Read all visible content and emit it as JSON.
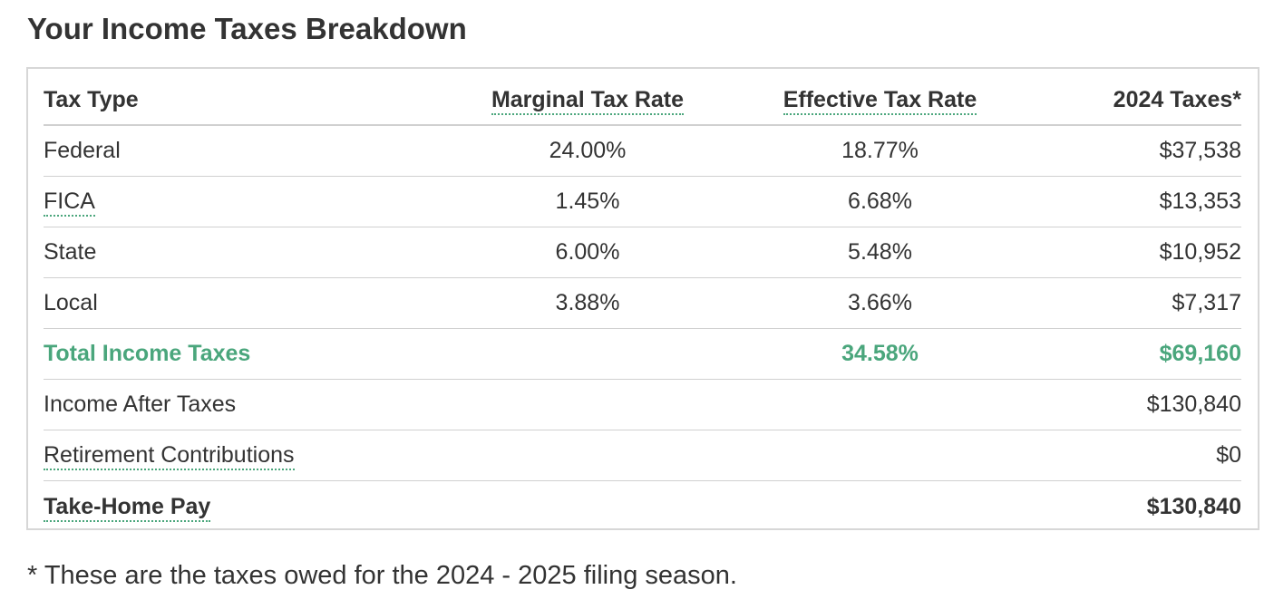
{
  "title": "Your Income Taxes Breakdown",
  "colors": {
    "accent": "#4aa67c",
    "text": "#333333",
    "border": "#d7d7d7"
  },
  "table": {
    "headers": {
      "tax_type": "Tax Type",
      "marginal": "Marginal Tax Rate",
      "effective": "Effective Tax Rate",
      "taxes": "2024 Taxes*"
    },
    "rows": [
      {
        "type": "Federal",
        "marginal": "24.00%",
        "effective": "18.77%",
        "taxes": "$37,538"
      },
      {
        "type": "FICA",
        "marginal": "1.45%",
        "effective": "6.68%",
        "taxes": "$13,353"
      },
      {
        "type": "State",
        "marginal": "6.00%",
        "effective": "5.48%",
        "taxes": "$10,952"
      },
      {
        "type": "Local",
        "marginal": "3.88%",
        "effective": "3.66%",
        "taxes": "$7,317"
      }
    ],
    "total": {
      "label": "Total Income Taxes",
      "effective": "34.58%",
      "taxes": "$69,160"
    },
    "after_taxes": {
      "label": "Income After Taxes",
      "value": "$130,840"
    },
    "retirement": {
      "label": "Retirement Contributions",
      "value": "$0"
    },
    "take_home": {
      "label": "Take-Home Pay",
      "value": "$130,840"
    }
  },
  "footnote": "* These are the taxes owed for the 2024 - 2025 filing season."
}
